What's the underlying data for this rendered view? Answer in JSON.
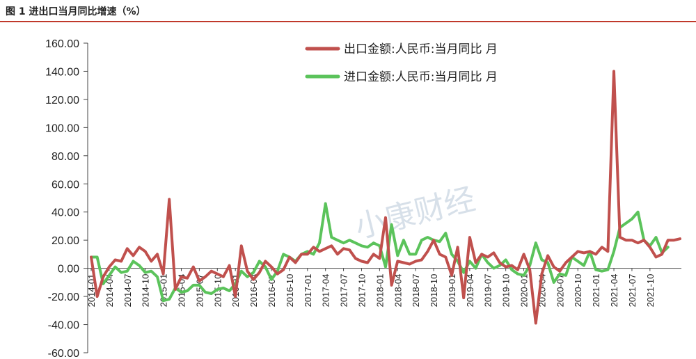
{
  "figure": {
    "title": "图 1 进出口当月同比增速（%）"
  },
  "watermark": "小康财经",
  "colors": {
    "export": "#c0504d",
    "import": "#5bc35b",
    "rule": "#c0392b",
    "axis": "#444444"
  },
  "chart_data": {
    "type": "line",
    "ylim": [
      -60,
      160
    ],
    "yticks": [
      "160.00",
      "140.00",
      "120.00",
      "100.00",
      "80.00",
      "60.00",
      "40.00",
      "20.00",
      "0.00",
      "-20.00",
      "-40.00",
      "-60.00"
    ],
    "ytick_values": [
      160,
      140,
      120,
      100,
      80,
      60,
      40,
      20,
      0,
      -20,
      -40,
      -60
    ],
    "xticks": [
      "2014-01",
      "2014-04",
      "2014-07",
      "2014-10",
      "2015-01",
      "2015-04",
      "2015-07",
      "2015-10",
      "2016-01",
      "2016-04",
      "2016-07",
      "2016-10",
      "2017-01",
      "2017-04",
      "2017-07",
      "2017-10",
      "2018-01",
      "2018-04",
      "2018-07",
      "2018-10",
      "2019-01",
      "2019-04",
      "2019-07",
      "2019-10",
      "2020-01",
      "2020-04",
      "2020-07",
      "2020-10",
      "2021-01",
      "2021-04",
      "2021-07",
      "2021-10"
    ],
    "legend": {
      "placement": "top-center"
    },
    "series": [
      {
        "name": "出口金额:人民币:当月同比 月",
        "values": [
          8,
          -20,
          -6,
          1,
          6,
          5,
          14,
          9,
          15,
          12,
          5,
          10,
          -4,
          49,
          -15,
          -6,
          -7,
          1,
          -9,
          -6,
          -2,
          -4,
          -6,
          2,
          -20,
          16,
          -2,
          -8,
          -3,
          5,
          1,
          -4,
          -1,
          8,
          4,
          10,
          10,
          15,
          12,
          14,
          16,
          10,
          14,
          13,
          7,
          5,
          4,
          10,
          7,
          36,
          -12,
          5,
          4,
          3,
          5,
          6,
          12,
          20,
          10,
          8,
          -5,
          15,
          -21,
          22,
          4,
          10,
          8,
          11,
          4,
          1,
          2,
          -1,
          10,
          -1,
          -39,
          -4,
          9,
          1,
          -2,
          4,
          8,
          12,
          11,
          12,
          10,
          15,
          12,
          140,
          22,
          20,
          20,
          18,
          20,
          15,
          8,
          10,
          20,
          20,
          21
        ]
      },
      {
        "name": "进口金额:人民币:当月同比 月",
        "values": [
          8,
          8,
          -11,
          -5,
          1,
          -3,
          -2,
          5,
          2,
          -3,
          -2,
          -6,
          -23,
          -22,
          -14,
          -17,
          -16,
          -12,
          -12,
          -17,
          -18,
          -15,
          -14,
          -16,
          -11,
          -2,
          -6,
          -3,
          5,
          1,
          -8,
          -2,
          10,
          8,
          5,
          10,
          12,
          10,
          18,
          46,
          22,
          20,
          18,
          20,
          18,
          16,
          15,
          18,
          16,
          1,
          31,
          9,
          20,
          10,
          10,
          20,
          22,
          20,
          19,
          25,
          10,
          5,
          -3,
          5,
          0,
          10,
          4,
          0,
          2,
          6,
          -1,
          -4,
          -5,
          2,
          18,
          6,
          4,
          -10,
          -4,
          -5,
          8,
          5,
          2,
          12,
          -1,
          -2,
          -1,
          12,
          29,
          32,
          35,
          40,
          20,
          16,
          22,
          11,
          15
        ]
      }
    ]
  }
}
